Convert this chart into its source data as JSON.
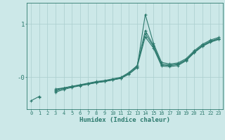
{
  "title": "",
  "xlabel": "Humidex (Indice chaleur)",
  "bg_color": "#cce8e8",
  "line_color": "#2d7a6e",
  "grid_color": "#aacece",
  "axis_color": "#2d7a6e",
  "tick_label_color": "#2d7a6e",
  "xlim": [
    -0.5,
    23.5
  ],
  "ylim": [
    -0.6,
    1.4
  ],
  "yticks": [
    0.0,
    1.0
  ],
  "ytick_labels": [
    "-0",
    "1"
  ],
  "xticks": [
    0,
    1,
    2,
    3,
    4,
    5,
    6,
    7,
    8,
    9,
    10,
    11,
    12,
    13,
    14,
    15,
    16,
    17,
    18,
    19,
    20,
    21,
    22,
    23
  ],
  "series": [
    [
      null,
      -0.38,
      null,
      -0.22,
      -0.2,
      -0.17,
      -0.15,
      -0.13,
      -0.1,
      -0.08,
      -0.05,
      -0.02,
      0.06,
      0.18,
      1.18,
      0.64,
      0.28,
      0.25,
      0.27,
      0.35,
      0.5,
      0.62,
      0.7,
      0.75
    ],
    [
      null,
      null,
      null,
      -0.26,
      -0.21,
      -0.18,
      -0.15,
      -0.12,
      -0.09,
      -0.07,
      -0.04,
      -0.01,
      0.08,
      0.21,
      0.88,
      0.6,
      0.25,
      0.23,
      0.25,
      0.33,
      0.48,
      0.6,
      0.68,
      0.73
    ],
    [
      -0.44,
      -0.36,
      null,
      -0.24,
      -0.2,
      -0.17,
      -0.14,
      -0.11,
      -0.08,
      -0.06,
      -0.03,
      0.0,
      0.09,
      0.22,
      0.82,
      0.58,
      0.23,
      0.22,
      0.24,
      0.32,
      0.47,
      0.59,
      0.67,
      0.72
    ],
    [
      null,
      null,
      null,
      -0.28,
      -0.23,
      -0.19,
      -0.16,
      -0.13,
      -0.1,
      -0.08,
      -0.05,
      -0.02,
      0.06,
      0.19,
      0.76,
      0.55,
      0.21,
      0.2,
      0.22,
      0.31,
      0.46,
      0.58,
      0.66,
      0.71
    ]
  ]
}
